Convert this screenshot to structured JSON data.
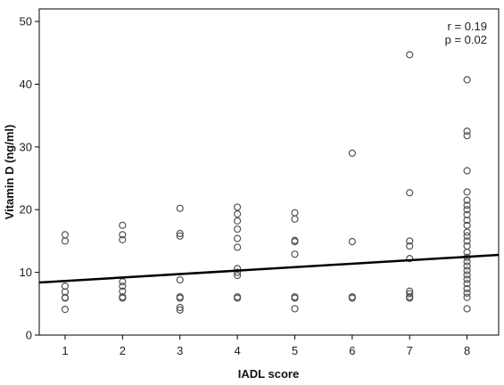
{
  "chart_data": {
    "type": "scatter",
    "xlabel": "IADL score",
    "ylabel": "Vitamin D (ng/ml)",
    "xlim": [
      0.55,
      8.55
    ],
    "ylim": [
      0,
      52
    ],
    "x_ticks": [
      1,
      2,
      3,
      4,
      5,
      6,
      7,
      8
    ],
    "y_ticks": [
      0,
      10,
      20,
      30,
      40,
      50
    ],
    "annotations": [
      "r = 0.19",
      "p = 0.02"
    ],
    "grid": false,
    "legend": "none",
    "colors": {
      "marker_stroke": "#555555",
      "fit_line": "#000000",
      "axis": "#000000"
    },
    "fit_line": {
      "intercept": 8.08,
      "slope": 0.55
    },
    "points": [
      [
        1,
        16.0
      ],
      [
        1,
        15.0
      ],
      [
        1,
        7.8
      ],
      [
        1,
        6.9
      ],
      [
        1,
        6.0
      ],
      [
        1,
        5.9
      ],
      [
        1,
        4.1
      ],
      [
        2,
        17.5
      ],
      [
        2,
        16.0
      ],
      [
        2,
        15.2
      ],
      [
        2,
        8.5
      ],
      [
        2,
        7.8
      ],
      [
        2,
        7.0
      ],
      [
        2,
        6.1
      ],
      [
        2,
        5.9
      ],
      [
        3,
        20.2
      ],
      [
        3,
        16.2
      ],
      [
        3,
        15.8
      ],
      [
        3,
        8.8
      ],
      [
        3,
        6.1
      ],
      [
        3,
        5.9
      ],
      [
        3,
        4.4
      ],
      [
        3,
        4.0
      ],
      [
        4,
        20.4
      ],
      [
        4,
        19.3
      ],
      [
        4,
        18.2
      ],
      [
        4,
        16.9
      ],
      [
        4,
        15.4
      ],
      [
        4,
        14.0
      ],
      [
        4,
        10.6
      ],
      [
        4,
        10.0
      ],
      [
        4,
        9.5
      ],
      [
        4,
        6.1
      ],
      [
        4,
        5.9
      ],
      [
        5,
        19.5
      ],
      [
        5,
        18.5
      ],
      [
        5,
        15.1
      ],
      [
        5,
        14.9
      ],
      [
        5,
        12.9
      ],
      [
        5,
        6.1
      ],
      [
        5,
        5.9
      ],
      [
        5,
        4.2
      ],
      [
        6,
        29.0
      ],
      [
        6,
        14.9
      ],
      [
        6,
        6.1
      ],
      [
        6,
        5.9
      ],
      [
        7,
        44.7
      ],
      [
        7,
        22.7
      ],
      [
        7,
        15.0
      ],
      [
        7,
        14.2
      ],
      [
        7,
        12.2
      ],
      [
        7,
        7.0
      ],
      [
        7,
        6.6
      ],
      [
        7,
        6.1
      ],
      [
        7,
        5.9
      ],
      [
        8,
        40.7
      ],
      [
        8,
        32.5
      ],
      [
        8,
        31.8
      ],
      [
        8,
        26.2
      ],
      [
        8,
        22.8
      ],
      [
        8,
        21.5
      ],
      [
        8,
        20.7
      ],
      [
        8,
        20.0
      ],
      [
        8,
        19.2
      ],
      [
        8,
        18.3
      ],
      [
        8,
        17.5
      ],
      [
        8,
        16.4
      ],
      [
        8,
        15.8
      ],
      [
        8,
        15.0
      ],
      [
        8,
        14.2
      ],
      [
        8,
        13.2
      ],
      [
        8,
        12.4
      ],
      [
        8,
        11.7
      ],
      [
        8,
        11.0
      ],
      [
        8,
        10.3
      ],
      [
        8,
        9.6
      ],
      [
        8,
        8.9
      ],
      [
        8,
        8.2
      ],
      [
        8,
        7.4
      ],
      [
        8,
        6.7
      ],
      [
        8,
        6.0
      ],
      [
        8,
        4.2
      ]
    ]
  }
}
